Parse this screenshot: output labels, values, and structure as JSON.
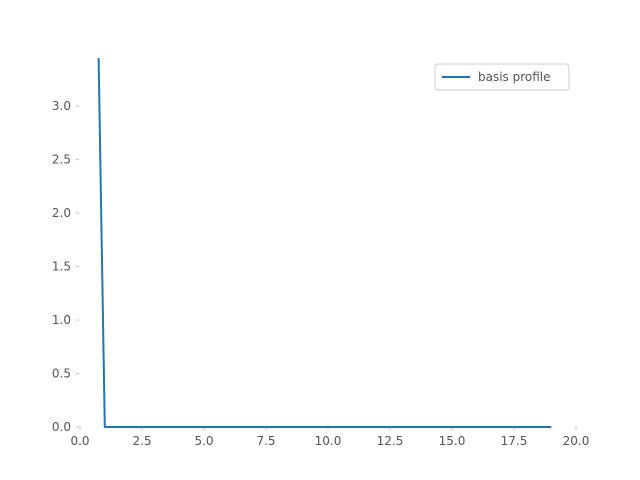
{
  "chart_data": {
    "type": "line",
    "title": "",
    "xlabel": "",
    "ylabel": "",
    "xlim": [
      0.0,
      20.0
    ],
    "ylim": [
      0.0,
      3.45
    ],
    "xticks": [
      0.0,
      2.5,
      5.0,
      7.5,
      10.0,
      12.5,
      15.0,
      17.5,
      20.0
    ],
    "xtick_labels": [
      "0.0",
      "2.5",
      "5.0",
      "7.5",
      "10.0",
      "12.5",
      "15.0",
      "17.5",
      "20.0"
    ],
    "yticks": [
      0.0,
      0.5,
      1.0,
      1.5,
      2.0,
      2.5,
      3.0
    ],
    "ytick_labels": [
      "0.0",
      "0.5",
      "1.0",
      "1.5",
      "2.0",
      "2.5",
      "3.0"
    ],
    "grid": false,
    "legend_position": "top-right",
    "series": [
      {
        "name": "basis profile",
        "color": "#1f77b4",
        "x": [
          0.75,
          1.0,
          2.0,
          5.0,
          10.0,
          15.0,
          19.0
        ],
        "y": [
          3.45,
          0.0,
          0.0,
          0.0,
          0.0,
          0.0,
          0.0
        ]
      }
    ]
  }
}
